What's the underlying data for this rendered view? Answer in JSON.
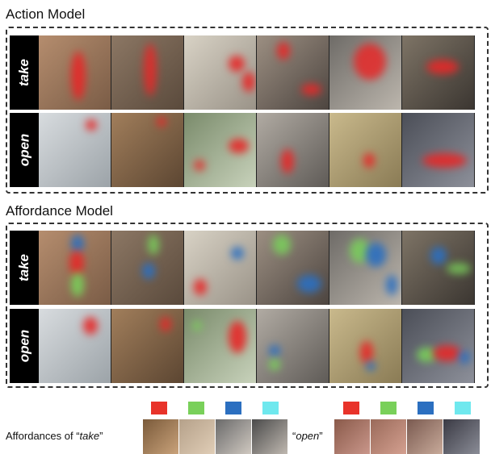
{
  "action_model": {
    "title": "Action Model",
    "rows": [
      {
        "label": "take"
      },
      {
        "label": "open"
      }
    ]
  },
  "affordance_model": {
    "title": "Affordance Model",
    "rows": [
      {
        "label": "take"
      },
      {
        "label": "open"
      }
    ]
  },
  "legend": {
    "take_prefix": "Affordances of “",
    "take_word": "take",
    "take_suffix": "”",
    "open_prefix": "“",
    "open_word": "open",
    "open_suffix": "”",
    "colors": [
      "#e8332a",
      "#79d05a",
      "#2b6fc0",
      "#6fe8ee"
    ]
  }
}
